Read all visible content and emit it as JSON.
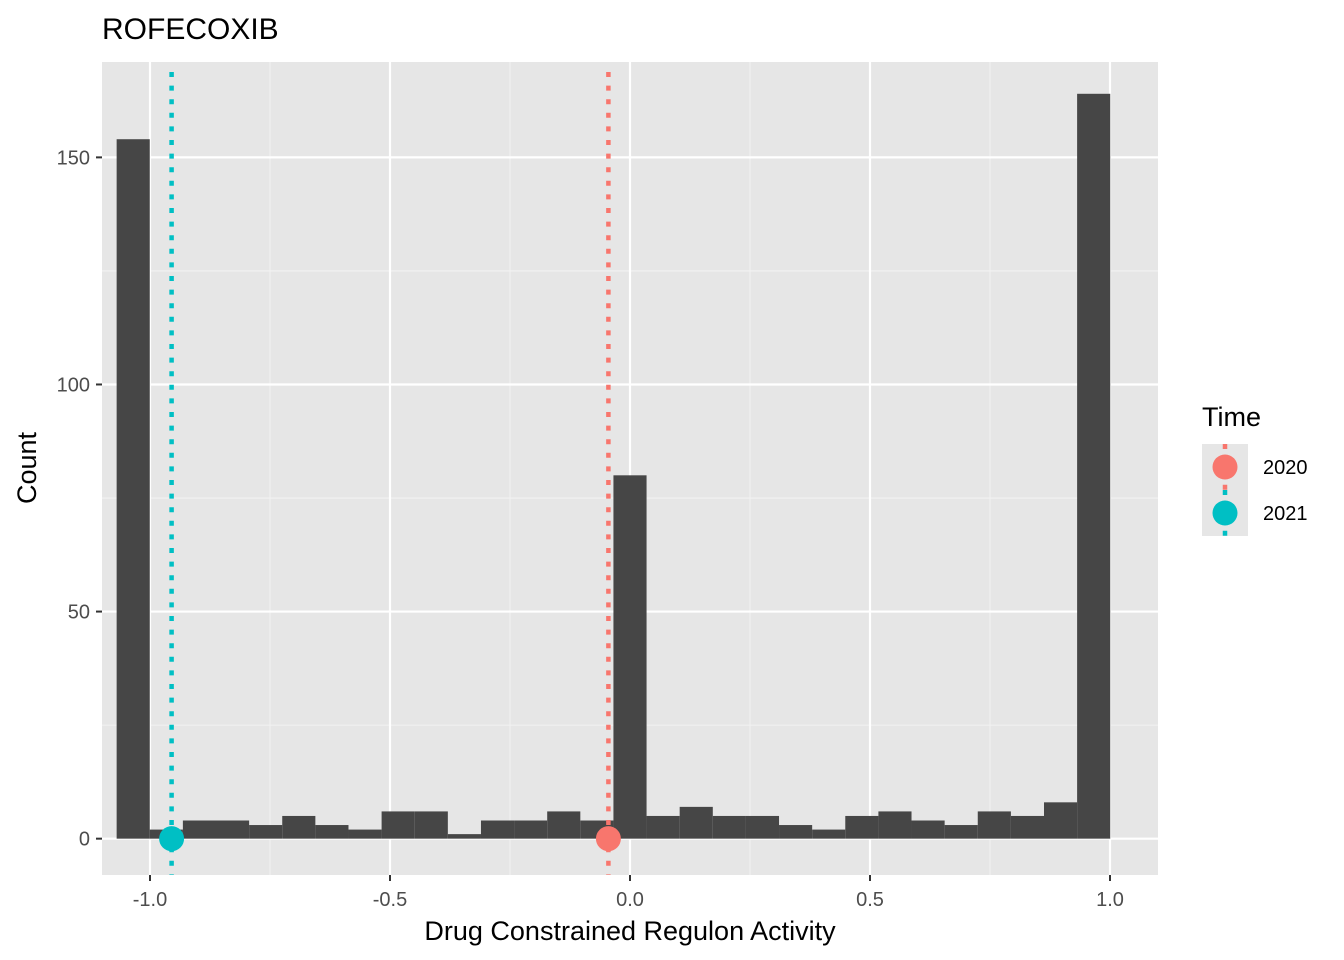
{
  "chart_data": {
    "type": "histogram",
    "title": "ROFECOXIB",
    "xlabel": "Drug Constrained Regulon Activity",
    "ylabel": "Count",
    "xlim": [
      -1.1,
      1.1
    ],
    "ylim": [
      -8,
      171
    ],
    "x_ticks": [
      -1.0,
      -0.5,
      0.0,
      0.5,
      1.0
    ],
    "x_tick_labels": [
      "-1.0",
      "-0.5",
      "0.0",
      "0.5",
      "1.0"
    ],
    "y_ticks": [
      0,
      50,
      100,
      150
    ],
    "y_tick_labels": [
      "0",
      "50",
      "100",
      "150"
    ],
    "bin_width": 0.069,
    "bins": [
      {
        "x": -1.035,
        "count": 154
      },
      {
        "x": -0.966,
        "count": 2
      },
      {
        "x": -0.897,
        "count": 4
      },
      {
        "x": -0.828,
        "count": 4
      },
      {
        "x": -0.759,
        "count": 3
      },
      {
        "x": -0.69,
        "count": 5
      },
      {
        "x": -0.621,
        "count": 3
      },
      {
        "x": -0.552,
        "count": 2
      },
      {
        "x": -0.483,
        "count": 6
      },
      {
        "x": -0.414,
        "count": 6
      },
      {
        "x": -0.345,
        "count": 1
      },
      {
        "x": -0.276,
        "count": 4
      },
      {
        "x": -0.207,
        "count": 4
      },
      {
        "x": -0.138,
        "count": 6
      },
      {
        "x": -0.069,
        "count": 4
      },
      {
        "x": 0.0,
        "count": 80
      },
      {
        "x": 0.069,
        "count": 5
      },
      {
        "x": 0.138,
        "count": 7
      },
      {
        "x": 0.207,
        "count": 5
      },
      {
        "x": 0.276,
        "count": 5
      },
      {
        "x": 0.345,
        "count": 3
      },
      {
        "x": 0.414,
        "count": 2
      },
      {
        "x": 0.483,
        "count": 5
      },
      {
        "x": 0.552,
        "count": 6
      },
      {
        "x": 0.621,
        "count": 4
      },
      {
        "x": 0.69,
        "count": 3
      },
      {
        "x": 0.759,
        "count": 6
      },
      {
        "x": 0.828,
        "count": 5
      },
      {
        "x": 0.897,
        "count": 8
      },
      {
        "x": 0.966,
        "count": 164
      }
    ],
    "bar_color": "#464646",
    "markers": [
      {
        "label": "2020",
        "x": -0.045,
        "y": 0,
        "color": "#F8766D"
      },
      {
        "label": "2021",
        "x": -0.955,
        "y": 0,
        "color": "#00BFC4"
      }
    ],
    "legend": {
      "title": "Time",
      "position": "right"
    }
  }
}
